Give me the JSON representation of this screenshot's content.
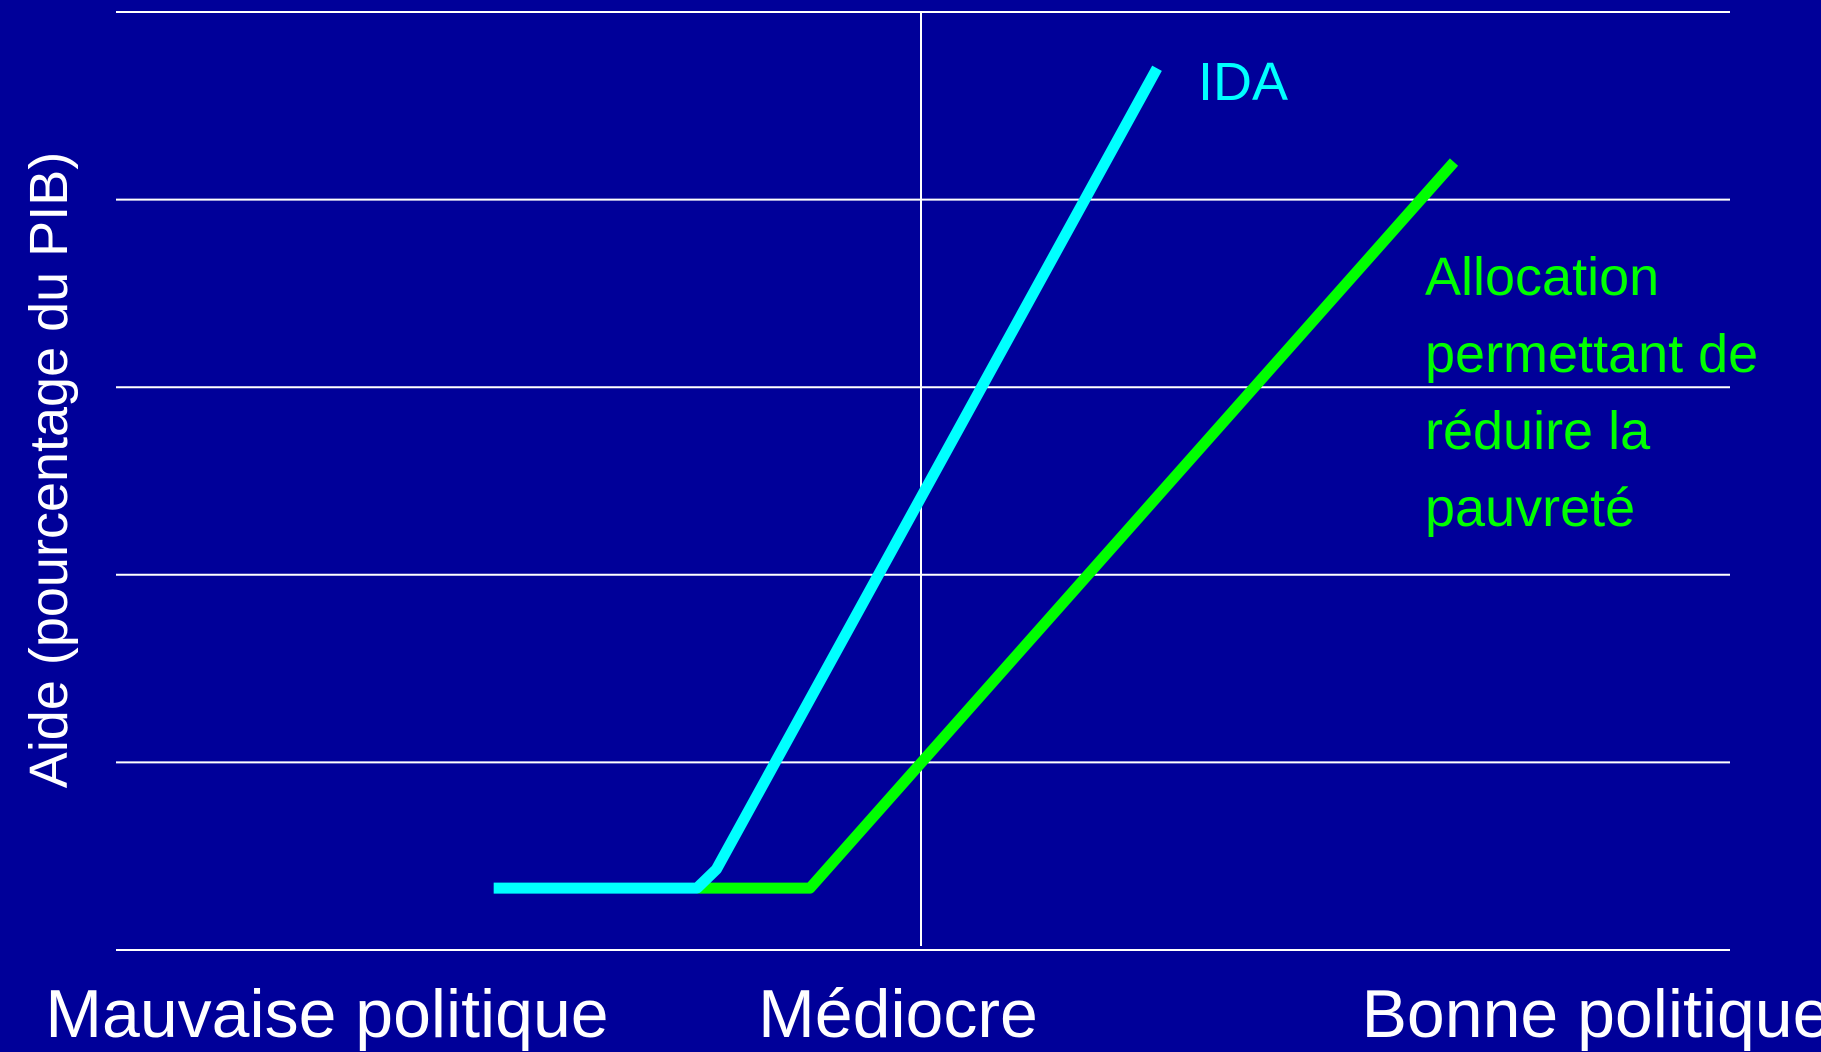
{
  "chart_data": {
    "type": "line",
    "title": "",
    "xlabel": "",
    "ylabel": "Aide (pourcentage du PIB)",
    "x_tick_labels": [
      "Mauvaise politique",
      "Médiocre",
      "Bonne politique"
    ],
    "xlim": [
      0,
      10
    ],
    "ylim": [
      0,
      5
    ],
    "grid": true,
    "series": [
      {
        "name": "IDA",
        "color": "#00ffff",
        "points": [
          [
            2.34,
            0.33
          ],
          [
            3.6,
            0.33
          ],
          [
            3.72,
            0.43
          ],
          [
            6.45,
            4.7
          ]
        ]
      },
      {
        "name_lines": [
          "Allocation",
          "permettant de",
          "réduire la",
          "pauvreté"
        ],
        "color": "#00ff00",
        "points": [
          [
            3.6,
            0.33
          ],
          [
            4.3,
            0.33
          ],
          [
            8.29,
            4.2
          ]
        ]
      }
    ]
  }
}
